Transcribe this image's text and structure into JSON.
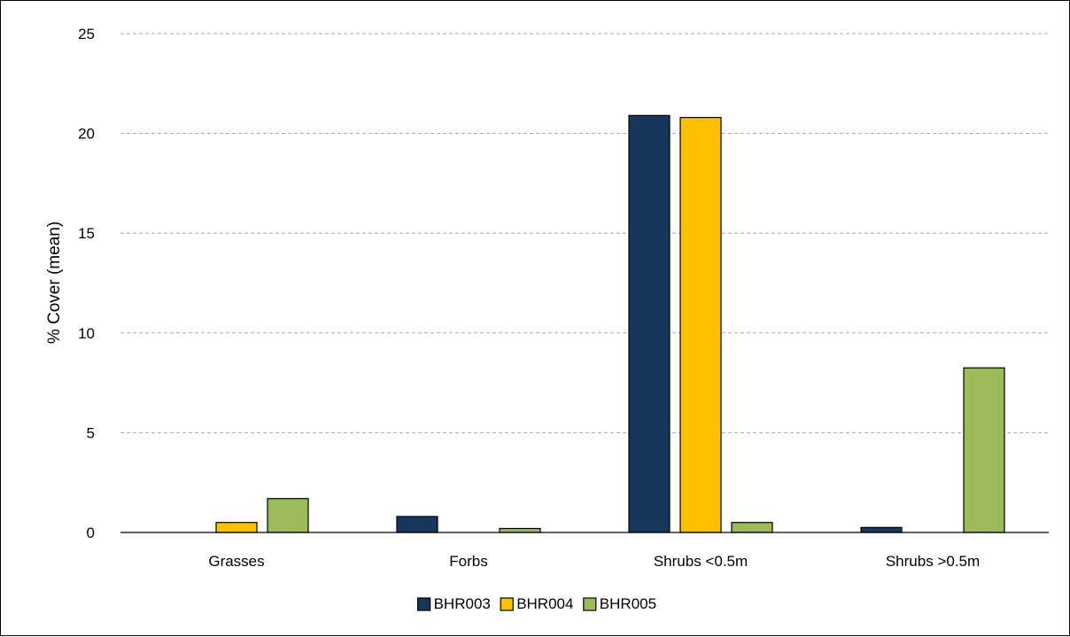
{
  "chart_data": {
    "type": "bar",
    "title": "",
    "xlabel": "",
    "ylabel": "% Cover (mean)",
    "ylim": [
      0,
      25
    ],
    "yticks": [
      0,
      5,
      10,
      15,
      20,
      25
    ],
    "grid": true,
    "legend_position": "bottom",
    "categories": [
      "Grasses",
      "Forbs",
      "Shrubs <0.5m",
      "Shrubs >0.5m"
    ],
    "series": [
      {
        "name": "BHR003",
        "color": "#17375e",
        "values": [
          0,
          0.8,
          20.9,
          0.25
        ]
      },
      {
        "name": "BHR004",
        "color": "#ffc000",
        "values": [
          0.5,
          0,
          20.8,
          0
        ]
      },
      {
        "name": "BHR005",
        "color": "#9bbb59",
        "values": [
          1.7,
          0.2,
          0.5,
          8.25
        ]
      }
    ]
  }
}
